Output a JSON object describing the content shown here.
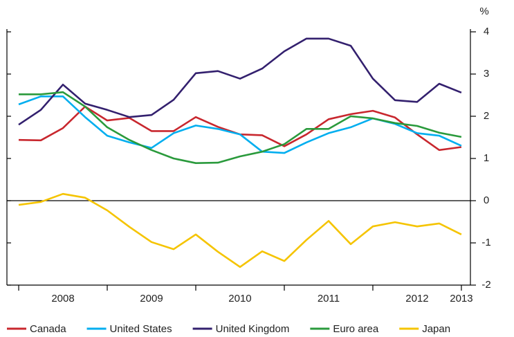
{
  "chart_data": {
    "type": "line",
    "unit_label": "%",
    "x": [
      2008,
      2008.25,
      2008.5,
      2008.75,
      2009,
      2009.25,
      2009.5,
      2009.75,
      2010,
      2010.25,
      2010.5,
      2010.75,
      2011,
      2011.25,
      2011.5,
      2011.75,
      2012,
      2012.25,
      2012.5,
      2012.75,
      2013
    ],
    "xlim": [
      2007.867,
      2013.102
    ],
    "xtick_marks": [
      2008,
      2009,
      2010,
      2011,
      2012,
      2013
    ],
    "xticks": [
      {
        "value": 2008.5,
        "label": "2008"
      },
      {
        "value": 2009.5,
        "label": "2009"
      },
      {
        "value": 2010.5,
        "label": "2010"
      },
      {
        "value": 2011.5,
        "label": "2011"
      },
      {
        "value": 2012.5,
        "label": "2012"
      },
      {
        "value": 2013,
        "label": "2013"
      }
    ],
    "ylim": [
      -2,
      4
    ],
    "yticks": [
      -2,
      -1,
      0,
      1,
      2,
      3,
      4
    ],
    "legend": "bottom",
    "series": [
      {
        "name": "Canada",
        "color": "#c8272e",
        "values": [
          1.44,
          1.43,
          1.72,
          2.23,
          1.9,
          1.96,
          1.65,
          1.65,
          1.98,
          1.75,
          1.57,
          1.55,
          1.29,
          1.57,
          1.93,
          2.05,
          2.13,
          1.97,
          1.57,
          1.2,
          1.27
        ]
      },
      {
        "name": "United States",
        "color": "#00aeef",
        "values": [
          2.28,
          2.47,
          2.47,
          1.98,
          1.54,
          1.38,
          1.25,
          1.6,
          1.78,
          1.7,
          1.57,
          1.16,
          1.13,
          1.38,
          1.6,
          1.74,
          1.95,
          1.82,
          1.6,
          1.54,
          1.3
        ]
      },
      {
        "name": "United Kingdom",
        "color": "#33206e",
        "values": [
          1.8,
          2.15,
          2.75,
          2.3,
          2.15,
          1.98,
          2.03,
          2.39,
          3.02,
          3.07,
          2.89,
          3.13,
          3.54,
          3.84,
          3.84,
          3.67,
          2.89,
          2.38,
          2.34,
          2.77,
          2.56
        ]
      },
      {
        "name": "Euro area",
        "color": "#2a9a3c",
        "values": [
          2.52,
          2.52,
          2.57,
          2.23,
          1.74,
          1.44,
          1.2,
          1.0,
          0.89,
          0.9,
          1.05,
          1.16,
          1.34,
          1.7,
          1.7,
          2.0,
          1.95,
          1.84,
          1.77,
          1.61,
          1.51
        ]
      },
      {
        "name": "Japan",
        "color": "#f5c400",
        "values": [
          -0.1,
          -0.03,
          0.16,
          0.07,
          -0.23,
          -0.62,
          -0.98,
          -1.15,
          -0.8,
          -1.21,
          -1.57,
          -1.2,
          -1.43,
          -0.93,
          -0.48,
          -1.03,
          -0.61,
          -0.51,
          -0.61,
          -0.54,
          -0.8
        ]
      }
    ]
  }
}
